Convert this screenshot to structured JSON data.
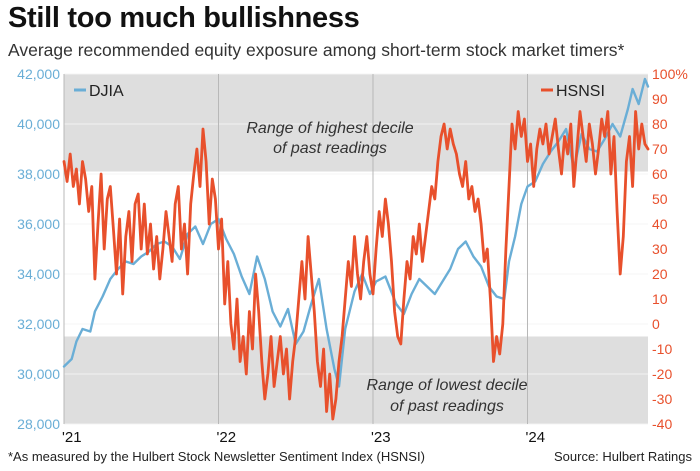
{
  "title": "Still too much bullishness",
  "subtitle": "Average recommended equity exposure among short-term stock market timers*",
  "footnote": "*As measured by the Hulbert Stock Newsletter Sentiment Index (HSNSI)",
  "source": "Source: Hulbert Ratings",
  "chart_data": {
    "type": "line",
    "x_ticks": [
      "'21",
      "'22",
      "'23",
      "'24"
    ],
    "y_left": {
      "ticks": [
        "28,000",
        "30,000",
        "32,000",
        "34,000",
        "36,000",
        "38,000",
        "40,000",
        "42,000"
      ],
      "ylim": [
        28000,
        42000
      ],
      "color": "#6aaed6"
    },
    "y_right": {
      "ticks": [
        "-40",
        "-30",
        "-20",
        "-10",
        "0",
        "10",
        "20",
        "30",
        "40",
        "50",
        "60",
        "70",
        "80",
        "90",
        "100%"
      ],
      "ylim": [
        -40,
        100
      ],
      "color": "#e8502c"
    },
    "bands": [
      {
        "label_line1": "Range of highest decile",
        "label_line2": "of past readings",
        "from": 61,
        "to": 100,
        "axis": "right"
      },
      {
        "label_line1": "Range of lowest decile",
        "label_line2": "of past readings",
        "from": -40,
        "to": -5,
        "axis": "right"
      }
    ],
    "series": [
      {
        "name": "DJIA",
        "axis": "left",
        "color": "#6aaed6",
        "points": [
          [
            2021.0,
            30300
          ],
          [
            2021.05,
            30600
          ],
          [
            2021.08,
            31300
          ],
          [
            2021.12,
            31800
          ],
          [
            2021.17,
            31700
          ],
          [
            2021.2,
            32500
          ],
          [
            2021.25,
            33100
          ],
          [
            2021.3,
            33800
          ],
          [
            2021.35,
            34200
          ],
          [
            2021.4,
            34500
          ],
          [
            2021.45,
            34400
          ],
          [
            2021.5,
            34700
          ],
          [
            2021.55,
            34900
          ],
          [
            2021.6,
            35200
          ],
          [
            2021.65,
            35300
          ],
          [
            2021.7,
            35100
          ],
          [
            2021.75,
            34600
          ],
          [
            2021.8,
            35600
          ],
          [
            2021.85,
            35900
          ],
          [
            2021.9,
            35200
          ],
          [
            2021.95,
            36000
          ],
          [
            2022.0,
            36200
          ],
          [
            2022.05,
            35400
          ],
          [
            2022.1,
            34800
          ],
          [
            2022.15,
            33900
          ],
          [
            2022.2,
            33200
          ],
          [
            2022.25,
            34700
          ],
          [
            2022.3,
            33800
          ],
          [
            2022.35,
            32500
          ],
          [
            2022.4,
            31900
          ],
          [
            2022.45,
            32600
          ],
          [
            2022.5,
            31200
          ],
          [
            2022.55,
            31700
          ],
          [
            2022.6,
            32800
          ],
          [
            2022.65,
            33800
          ],
          [
            2022.7,
            31800
          ],
          [
            2022.75,
            30200
          ],
          [
            2022.78,
            29500
          ],
          [
            2022.82,
            31800
          ],
          [
            2022.88,
            33300
          ],
          [
            2022.93,
            34000
          ],
          [
            2022.98,
            33200
          ],
          [
            2023.02,
            33700
          ],
          [
            2023.08,
            33900
          ],
          [
            2023.15,
            32800
          ],
          [
            2023.2,
            32400
          ],
          [
            2023.25,
            33200
          ],
          [
            2023.3,
            33800
          ],
          [
            2023.35,
            33500
          ],
          [
            2023.4,
            33200
          ],
          [
            2023.45,
            33700
          ],
          [
            2023.5,
            34200
          ],
          [
            2023.55,
            35000
          ],
          [
            2023.6,
            35300
          ],
          [
            2023.65,
            34700
          ],
          [
            2023.7,
            34300
          ],
          [
            2023.75,
            33500
          ],
          [
            2023.8,
            33100
          ],
          [
            2023.85,
            33000
          ],
          [
            2023.88,
            34500
          ],
          [
            2023.92,
            35500
          ],
          [
            2023.96,
            36800
          ],
          [
            2024.0,
            37500
          ],
          [
            2024.05,
            37700
          ],
          [
            2024.1,
            38400
          ],
          [
            2024.15,
            38900
          ],
          [
            2024.2,
            39300
          ],
          [
            2024.25,
            39800
          ],
          [
            2024.3,
            38200
          ],
          [
            2024.35,
            39600
          ],
          [
            2024.4,
            39000
          ],
          [
            2024.45,
            38900
          ],
          [
            2024.5,
            39400
          ],
          [
            2024.55,
            40000
          ],
          [
            2024.6,
            39500
          ],
          [
            2024.65,
            40600
          ],
          [
            2024.68,
            41400
          ],
          [
            2024.72,
            40800
          ],
          [
            2024.76,
            41800
          ],
          [
            2024.78,
            41500
          ]
        ]
      },
      {
        "name": "HSNSI",
        "axis": "right",
        "color": "#e8502c",
        "points": [
          [
            2021.0,
            65
          ],
          [
            2021.02,
            57
          ],
          [
            2021.04,
            68
          ],
          [
            2021.06,
            55
          ],
          [
            2021.08,
            62
          ],
          [
            2021.1,
            48
          ],
          [
            2021.12,
            65
          ],
          [
            2021.14,
            58
          ],
          [
            2021.16,
            45
          ],
          [
            2021.18,
            55
          ],
          [
            2021.2,
            18
          ],
          [
            2021.22,
            40
          ],
          [
            2021.24,
            60
          ],
          [
            2021.26,
            30
          ],
          [
            2021.28,
            50
          ],
          [
            2021.3,
            55
          ],
          [
            2021.32,
            38
          ],
          [
            2021.34,
            20
          ],
          [
            2021.36,
            42
          ],
          [
            2021.38,
            12
          ],
          [
            2021.4,
            35
          ],
          [
            2021.42,
            45
          ],
          [
            2021.44,
            25
          ],
          [
            2021.46,
            48
          ],
          [
            2021.48,
            52
          ],
          [
            2021.5,
            30
          ],
          [
            2021.52,
            48
          ],
          [
            2021.54,
            28
          ],
          [
            2021.56,
            40
          ],
          [
            2021.58,
            22
          ],
          [
            2021.6,
            35
          ],
          [
            2021.62,
            18
          ],
          [
            2021.64,
            30
          ],
          [
            2021.66,
            45
          ],
          [
            2021.68,
            35
          ],
          [
            2021.7,
            25
          ],
          [
            2021.72,
            48
          ],
          [
            2021.74,
            55
          ],
          [
            2021.76,
            30
          ],
          [
            2021.78,
            40
          ],
          [
            2021.8,
            20
          ],
          [
            2021.82,
            48
          ],
          [
            2021.84,
            60
          ],
          [
            2021.86,
            70
          ],
          [
            2021.88,
            55
          ],
          [
            2021.9,
            78
          ],
          [
            2021.92,
            65
          ],
          [
            2021.94,
            40
          ],
          [
            2021.96,
            58
          ],
          [
            2021.98,
            50
          ],
          [
            2022.0,
            30
          ],
          [
            2022.02,
            42
          ],
          [
            2022.04,
            8
          ],
          [
            2022.06,
            25
          ],
          [
            2022.08,
            0
          ],
          [
            2022.1,
            -10
          ],
          [
            2022.12,
            10
          ],
          [
            2022.14,
            -15
          ],
          [
            2022.16,
            -5
          ],
          [
            2022.18,
            -20
          ],
          [
            2022.2,
            5
          ],
          [
            2022.22,
            -10
          ],
          [
            2022.24,
            20
          ],
          [
            2022.26,
            5
          ],
          [
            2022.28,
            -15
          ],
          [
            2022.3,
            -30
          ],
          [
            2022.32,
            -20
          ],
          [
            2022.34,
            -5
          ],
          [
            2022.36,
            -25
          ],
          [
            2022.38,
            -15
          ],
          [
            2022.4,
            -5
          ],
          [
            2022.42,
            -20
          ],
          [
            2022.44,
            -10
          ],
          [
            2022.46,
            -30
          ],
          [
            2022.48,
            -15
          ],
          [
            2022.5,
            -5
          ],
          [
            2022.52,
            10
          ],
          [
            2022.54,
            25
          ],
          [
            2022.56,
            10
          ],
          [
            2022.58,
            35
          ],
          [
            2022.6,
            20
          ],
          [
            2022.62,
            5
          ],
          [
            2022.64,
            -15
          ],
          [
            2022.66,
            -25
          ],
          [
            2022.68,
            -10
          ],
          [
            2022.7,
            -35
          ],
          [
            2022.72,
            -20
          ],
          [
            2022.74,
            -38
          ],
          [
            2022.76,
            -30
          ],
          [
            2022.78,
            -15
          ],
          [
            2022.8,
            -5
          ],
          [
            2022.82,
            10
          ],
          [
            2022.84,
            25
          ],
          [
            2022.86,
            15
          ],
          [
            2022.88,
            35
          ],
          [
            2022.9,
            20
          ],
          [
            2022.92,
            10
          ],
          [
            2022.94,
            25
          ],
          [
            2022.96,
            35
          ],
          [
            2022.98,
            20
          ],
          [
            2023.0,
            12
          ],
          [
            2023.02,
            30
          ],
          [
            2023.04,
            45
          ],
          [
            2023.06,
            35
          ],
          [
            2023.08,
            50
          ],
          [
            2023.1,
            40
          ],
          [
            2023.12,
            25
          ],
          [
            2023.14,
            5
          ],
          [
            2023.16,
            -5
          ],
          [
            2023.18,
            -8
          ],
          [
            2023.2,
            10
          ],
          [
            2023.22,
            25
          ],
          [
            2023.24,
            18
          ],
          [
            2023.26,
            35
          ],
          [
            2023.28,
            28
          ],
          [
            2023.3,
            40
          ],
          [
            2023.32,
            25
          ],
          [
            2023.34,
            35
          ],
          [
            2023.36,
            45
          ],
          [
            2023.38,
            55
          ],
          [
            2023.4,
            50
          ],
          [
            2023.42,
            65
          ],
          [
            2023.44,
            75
          ],
          [
            2023.46,
            80
          ],
          [
            2023.48,
            70
          ],
          [
            2023.5,
            78
          ],
          [
            2023.52,
            72
          ],
          [
            2023.54,
            68
          ],
          [
            2023.56,
            60
          ],
          [
            2023.58,
            55
          ],
          [
            2023.6,
            65
          ],
          [
            2023.62,
            50
          ],
          [
            2023.64,
            55
          ],
          [
            2023.66,
            45
          ],
          [
            2023.68,
            50
          ],
          [
            2023.7,
            40
          ],
          [
            2023.72,
            25
          ],
          [
            2023.74,
            30
          ],
          [
            2023.76,
            10
          ],
          [
            2023.78,
            -15
          ],
          [
            2023.8,
            -5
          ],
          [
            2023.82,
            -12
          ],
          [
            2023.84,
            0
          ],
          [
            2023.86,
            30
          ],
          [
            2023.88,
            55
          ],
          [
            2023.9,
            80
          ],
          [
            2023.92,
            70
          ],
          [
            2023.94,
            85
          ],
          [
            2023.96,
            75
          ],
          [
            2023.98,
            82
          ],
          [
            2024.0,
            65
          ],
          [
            2024.02,
            72
          ],
          [
            2024.04,
            55
          ],
          [
            2024.06,
            70
          ],
          [
            2024.08,
            78
          ],
          [
            2024.1,
            72
          ],
          [
            2024.12,
            80
          ],
          [
            2024.14,
            68
          ],
          [
            2024.16,
            75
          ],
          [
            2024.18,
            82
          ],
          [
            2024.2,
            70
          ],
          [
            2024.22,
            60
          ],
          [
            2024.24,
            75
          ],
          [
            2024.26,
            68
          ],
          [
            2024.28,
            80
          ],
          [
            2024.3,
            55
          ],
          [
            2024.32,
            70
          ],
          [
            2024.34,
            85
          ],
          [
            2024.36,
            75
          ],
          [
            2024.38,
            65
          ],
          [
            2024.4,
            80
          ],
          [
            2024.42,
            72
          ],
          [
            2024.44,
            60
          ],
          [
            2024.46,
            70
          ],
          [
            2024.48,
            82
          ],
          [
            2024.5,
            75
          ],
          [
            2024.52,
            85
          ],
          [
            2024.54,
            60
          ],
          [
            2024.56,
            75
          ],
          [
            2024.58,
            45
          ],
          [
            2024.6,
            20
          ],
          [
            2024.62,
            35
          ],
          [
            2024.64,
            65
          ],
          [
            2024.66,
            75
          ],
          [
            2024.68,
            55
          ],
          [
            2024.7,
            85
          ],
          [
            2024.72,
            70
          ],
          [
            2024.74,
            80
          ],
          [
            2024.76,
            72
          ],
          [
            2024.78,
            70
          ]
        ]
      }
    ]
  }
}
